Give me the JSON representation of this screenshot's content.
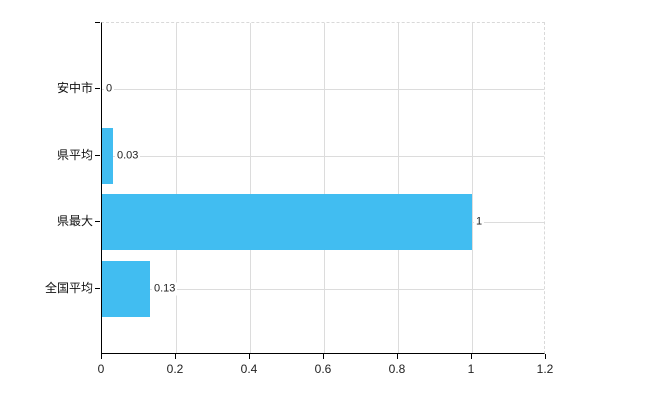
{
  "chart_data": {
    "type": "bar",
    "orientation": "horizontal",
    "title": "",
    "xlabel": "",
    "ylabel": "",
    "categories": [
      "安中市",
      "県平均",
      "県最大",
      "全国平均"
    ],
    "values": [
      0,
      0.03,
      1,
      0.13
    ],
    "value_labels": [
      "0",
      "0.03",
      "1",
      "0.13"
    ],
    "xlim": [
      0,
      1.2
    ],
    "xticks": [
      0,
      0.2,
      0.4,
      0.6,
      0.8,
      1,
      1.2
    ],
    "xtick_labels": [
      "0",
      "0.2",
      "0.4",
      "0.6",
      "0.8",
      "1",
      "1.2"
    ],
    "grid": true,
    "legend": false,
    "colors": {
      "bar": "#41bdf1",
      "gridline": "#dcdcdc",
      "plot_border_dashed": "#d9d9d9",
      "axis": "#000000",
      "tick_text": "#222222",
      "category_text": "#111111",
      "background": "#ffffff"
    }
  }
}
